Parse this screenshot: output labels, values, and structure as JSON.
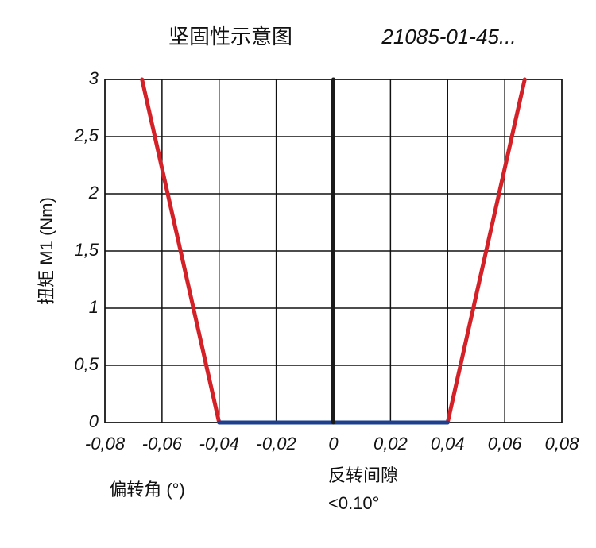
{
  "chart_data": {
    "type": "line",
    "title": "坚固性示意图",
    "subtitle": "21085-01-45...",
    "y_label": "扭矩 M1 (Nm)",
    "x_label": "偏转角 (°)",
    "annotation": [
      "反转间隙",
      "<0.10°"
    ],
    "xlim": [
      -0.08,
      0.08
    ],
    "ylim": [
      0,
      3
    ],
    "xticks": [
      {
        "value": -0.08,
        "label": "-0,08"
      },
      {
        "value": -0.06,
        "label": "-0,06"
      },
      {
        "value": -0.04,
        "label": "-0,04"
      },
      {
        "value": -0.02,
        "label": "-0,02"
      },
      0,
      {
        "value": 0.02,
        "label": "0,02"
      },
      {
        "value": 0.04,
        "label": "0,04"
      },
      {
        "value": 0.06,
        "label": "0,06"
      },
      {
        "value": 0.08,
        "label": "0,08"
      }
    ],
    "yticks": [
      0,
      {
        "value": 0.5,
        "label": "0,5"
      },
      1,
      {
        "value": 1.5,
        "label": "1,5"
      },
      2,
      {
        "value": 2.5,
        "label": "2,5"
      },
      3
    ],
    "grid": true,
    "series": [
      {
        "color": "#d42027",
        "x": [
          -0.067,
          -0.04
        ],
        "values": [
          3,
          0
        ]
      },
      {
        "color": "#d42027",
        "x": [
          0.04,
          0.067
        ],
        "values": [
          0,
          3
        ]
      },
      {
        "color": "#1c3f8f",
        "x": [
          -0.04,
          0.04
        ],
        "values": [
          0,
          0
        ]
      },
      {
        "color": "#1a1a1a",
        "x": [
          0,
          0
        ],
        "values": [
          0,
          3
        ]
      }
    ]
  }
}
